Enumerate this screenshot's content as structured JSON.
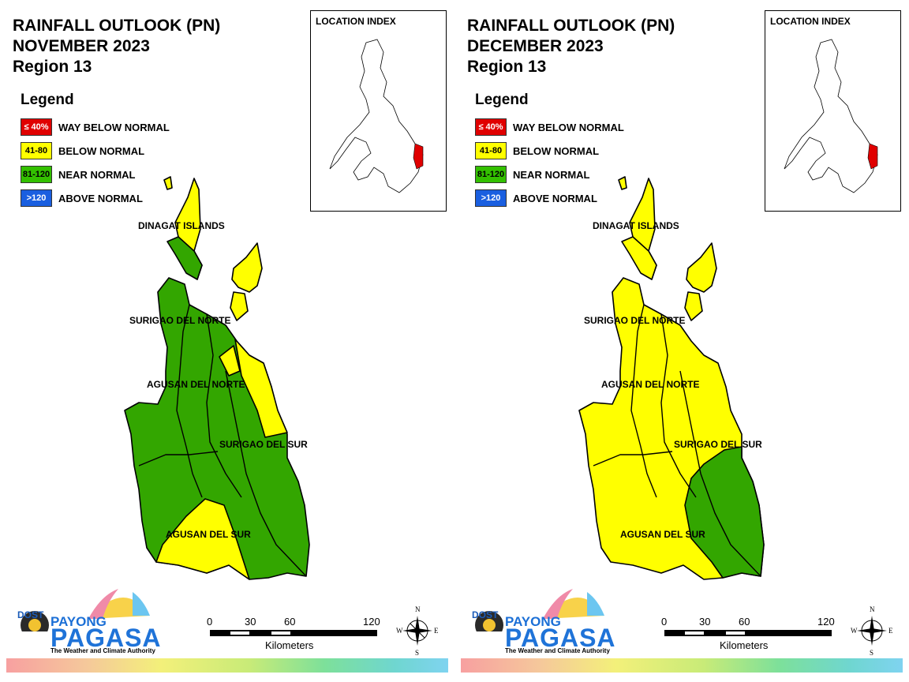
{
  "panels": [
    {
      "title_line1": "RAINFALL OUTLOOK (PN)",
      "title_line2": "NOVEMBER 2023",
      "title_line3": "Region 13",
      "fill_north": "#ffff00",
      "fill_main": "#33a600",
      "fill_east": "#ffff00",
      "fill_south": "#ffff00"
    },
    {
      "title_line1": "RAINFALL OUTLOOK (PN)",
      "title_line2": "DECEMBER 2023",
      "title_line3": "Region 13",
      "fill_north": "#ffff00",
      "fill_main": "#ffff00",
      "fill_east": "#ffff00",
      "fill_south": "#33a600"
    }
  ],
  "legend": {
    "title": "Legend",
    "items": [
      {
        "code": "≤ 40%",
        "label": "WAY BELOW NORMAL",
        "color": "#e00000",
        "text_color": "#ffffff"
      },
      {
        "code": "41-80",
        "label": "BELOW NORMAL",
        "color": "#ffff00",
        "text_color": "#000000"
      },
      {
        "code": "81-120",
        "label": "NEAR NORMAL",
        "color": "#33c000",
        "text_color": "#000000"
      },
      {
        "code": ">120",
        "label": "ABOVE NORMAL",
        "color": "#1a5fe0",
        "text_color": "#ffffff"
      }
    ]
  },
  "inset": {
    "title": "LOCATION INDEX",
    "highlight_color": "#e00000"
  },
  "provinces": {
    "dinagat": "DINAGAT ISLANDS",
    "surigao_norte": "SURIGAO DEL NORTE",
    "agusan_norte": "AGUSAN DEL NORTE",
    "surigao_sur": "SURIGAO DEL SUR",
    "agusan_sur": "AGUSAN DEL SUR"
  },
  "logo": {
    "dost": "DOST",
    "payong": "PAYONG",
    "pagasa": "PAGASA",
    "tagline": "The Weather and Climate Authority"
  },
  "scale": {
    "ticks": [
      "0",
      "30",
      "60",
      "120"
    ],
    "unit": "Kilometers"
  },
  "compass": {
    "n": "N",
    "e": "E",
    "s": "S",
    "w": "W"
  }
}
